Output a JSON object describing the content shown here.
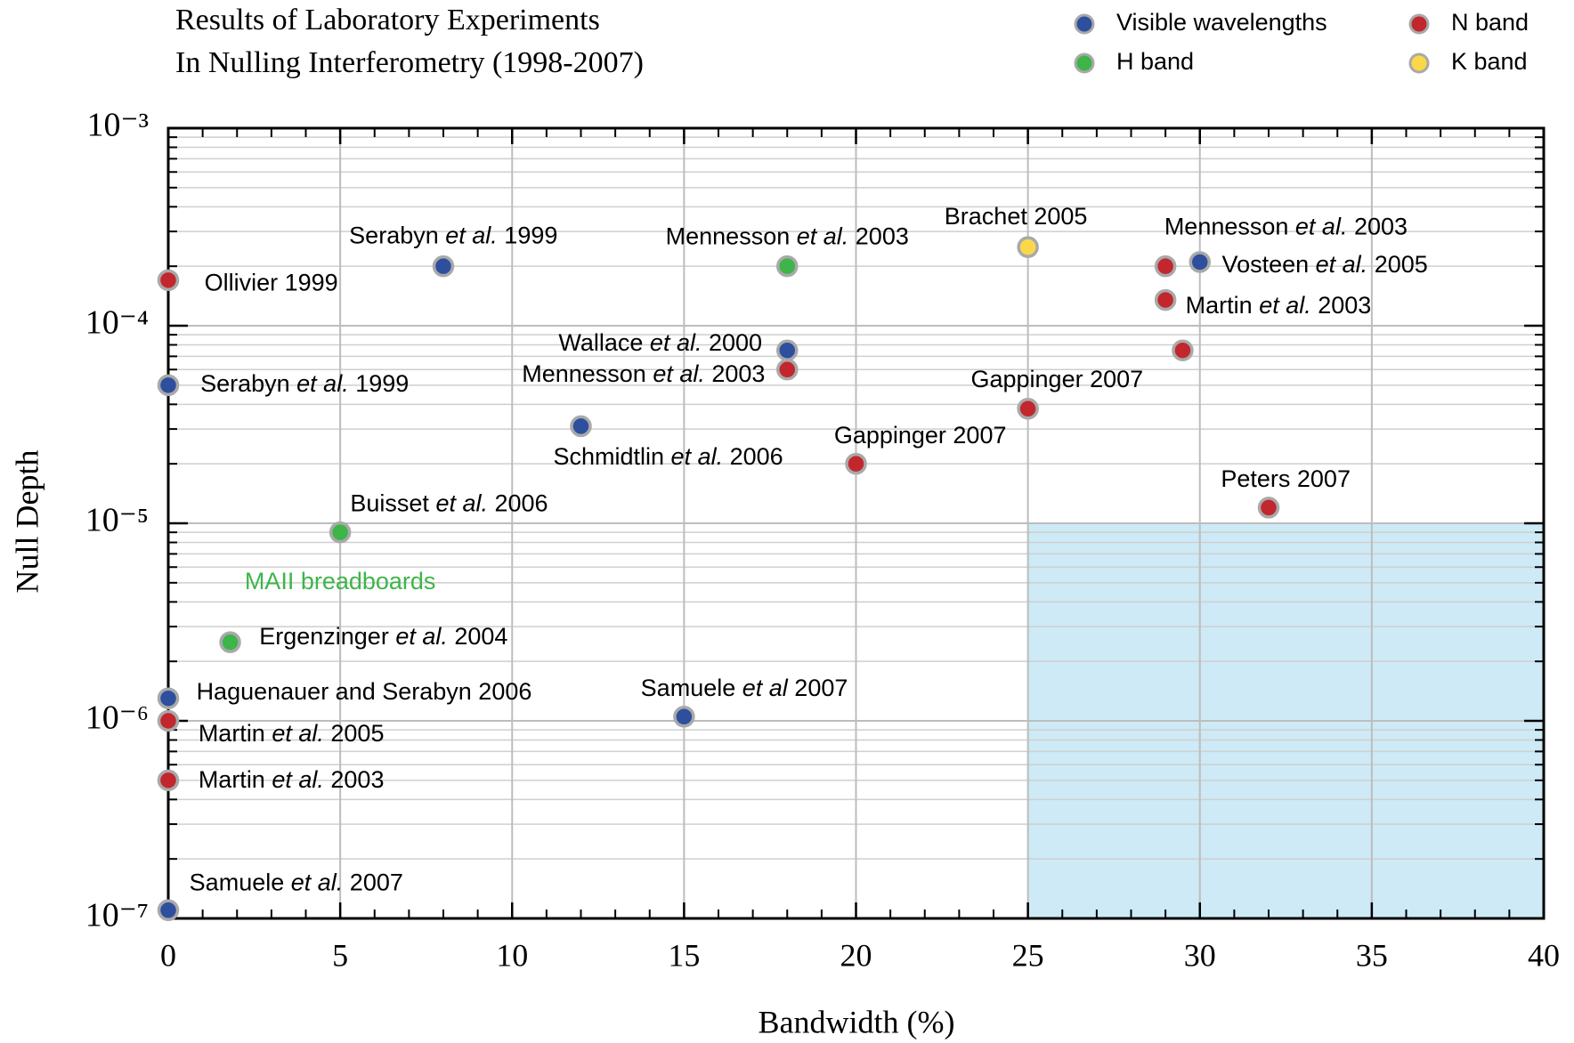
{
  "chart_data": {
    "type": "scatter",
    "title": [
      "Results of Laboratory Experiments",
      "In Nulling Interferometry (1998-2007)"
    ],
    "x_label": "Bandwidth (%)",
    "y_label": "Null Depth",
    "log_y": true,
    "grid": true,
    "minor_grid": true,
    "legend": "top-right",
    "xlim": [
      0,
      40
    ],
    "xticks": [
      0,
      5,
      10,
      15,
      20,
      25,
      30,
      35,
      40
    ],
    "ylim": [
      1e-07,
      0.001
    ],
    "yticks": [
      {
        "value": 1e-07,
        "label": "10⁻⁷"
      },
      {
        "value": 1e-06,
        "label": "10⁻⁶"
      },
      {
        "value": 1e-05,
        "label": "10⁻⁵"
      },
      {
        "value": 0.0001,
        "label": "10⁻⁴"
      },
      {
        "value": 0.001,
        "label": "10⁻³"
      }
    ],
    "region": {
      "xlim": [
        25,
        40
      ],
      "ylim": [
        1e-07,
        1e-05
      ],
      "color": "#cdeaf6"
    },
    "annotations": [
      {
        "text": "MAII breadboards",
        "x": 5,
        "y": 5e-06,
        "color": "#3db549"
      }
    ],
    "series": [
      {
        "name": "Visible wavelengths",
        "color": "#2d4f9e",
        "x": [
          8,
          18,
          0,
          12,
          0,
          15,
          0,
          30
        ],
        "values": [
          0.0002,
          7.5e-05,
          5e-05,
          3.1e-05,
          1.3e-06,
          1.05e-06,
          1.1e-07,
          0.00021
        ],
        "labels": [
          "Serabyn et al. 1999",
          "Wallace et al. 2000",
          "Serabyn et al. 1999",
          "Schmidtlin et al. 2006",
          "Haguenauer and Serabyn 2006",
          "Samuele et al 2007",
          "Samuele et al. 2007",
          "Vosteen et al. 2005"
        ]
      },
      {
        "name": "H band",
        "color": "#3db549",
        "x": [
          18,
          5,
          1.8
        ],
        "values": [
          0.0002,
          9e-06,
          2.5e-06
        ],
        "labels": [
          "Mennesson et al. 2003",
          "Buisset et al. 2006",
          "Ergenzinger et al. 2004"
        ]
      },
      {
        "name": "N band",
        "color": "#c1272d",
        "x": [
          0,
          18,
          29,
          29,
          29.5,
          25,
          20,
          32,
          0,
          0
        ],
        "values": [
          0.00017,
          6e-05,
          0.0002,
          0.000135,
          7.5e-05,
          3.8e-05,
          2e-05,
          1.2e-05,
          1e-06,
          5e-07
        ],
        "labels": [
          "Ollivier 1999",
          "Mennesson et al. 2003",
          "Mennesson et al. 2003",
          "Martin et al. 2003",
          null,
          "Gappinger 2007",
          "Gappinger 2007",
          "Peters 2007",
          "Martin et al. 2005",
          "Martin et al. 2003"
        ]
      },
      {
        "name": "K band",
        "color": "#fbd84a",
        "x": [
          25
        ],
        "values": [
          0.00025
        ],
        "labels": [
          "Brachet 2005"
        ]
      }
    ]
  }
}
